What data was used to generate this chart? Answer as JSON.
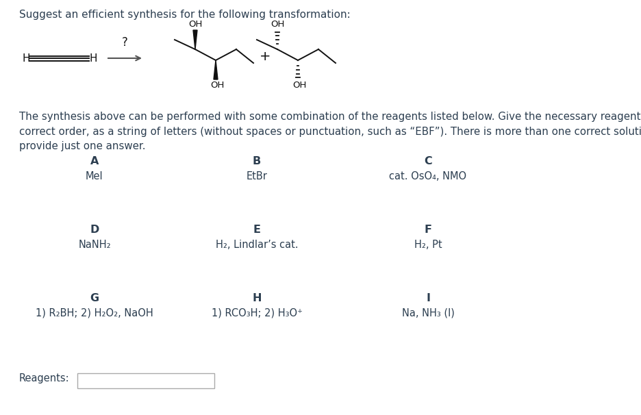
{
  "title": "Suggest an efficient synthesis for the following transformation:",
  "background_color": "#ffffff",
  "text_color": "#2c3e50",
  "body_text": "The synthesis above can be performed with some combination of the reagents listed below. Give the necessary reagents in the\ncorrect order, as a string of letters (without spaces or punctuation, such as “EBF”). There is more than one correct solution, but\nprovide just one answer.",
  "reagents_label": "Reagents:",
  "row_labels": [
    [
      [
        "A",
        "MeI"
      ],
      [
        "B",
        "EtBr"
      ],
      [
        "C",
        "cat. OsO₄, NMO"
      ]
    ],
    [
      [
        "D",
        "NaNH₂"
      ],
      [
        "E",
        "H₂, Lindlar’s cat."
      ],
      [
        "F",
        "H₂, Pt"
      ]
    ],
    [
      [
        "G",
        "1) R₂BH; 2) H₂O₂, NaOH"
      ],
      [
        "H",
        "1) RCO₃H; 2) H₃O⁺"
      ],
      [
        "I",
        "Na, NH₃ (l)"
      ]
    ]
  ],
  "figsize": [
    9.36,
    6.06
  ],
  "dpi": 100
}
